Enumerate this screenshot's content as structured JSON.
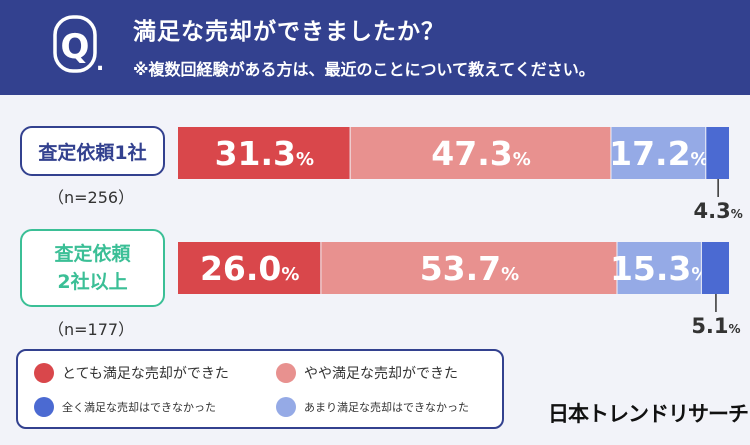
{
  "header": {
    "q_letter": "Q",
    "q_dot": ".",
    "title": "満足な売却ができましたか？",
    "subtitle": "※複数回経験がある方は、最近のことについて教えてください。"
  },
  "groups": [
    {
      "label_lines": [
        "査定依頼1社"
      ],
      "n": "（n=256）"
    },
    {
      "label_lines": [
        "査定依頼",
        "2社以上"
      ],
      "n": "（n=177）"
    }
  ],
  "percent_sign": "%",
  "legend": {
    "items": [
      {
        "label": "とても満足な売却ができた",
        "color": "#d9474b"
      },
      {
        "label": "やや満足な売却ができた",
        "color": "#e8918f"
      },
      {
        "label": "全く満足な売却はできなかった",
        "color": "#4b6ad2"
      },
      {
        "label": "あまり満足な売却はできなかった",
        "color": "#95aae6"
      }
    ]
  },
  "brand": "日本トレンドリサーチ",
  "chart_data": {
    "type": "bar",
    "stacked": true,
    "orientation": "horizontal",
    "categories": [
      "査定依頼1社",
      "査定依頼2社以上"
    ],
    "series": [
      {
        "name": "とても満足な売却ができた",
        "color": "#d9474b",
        "values": [
          31.3,
          26.0
        ]
      },
      {
        "name": "やや満足な売却ができた",
        "color": "#e8918f",
        "values": [
          47.3,
          53.7
        ]
      },
      {
        "name": "あまり満足な売却はできなかった",
        "color": "#95aae6",
        "values": [
          17.2,
          15.3
        ]
      },
      {
        "name": "全く満足な売却はできなかった",
        "color": "#4b6ad2",
        "values": [
          4.3,
          5.1
        ]
      }
    ],
    "title": "満足な売却ができましたか？",
    "legend_position": "bottom-left",
    "grid": false
  }
}
